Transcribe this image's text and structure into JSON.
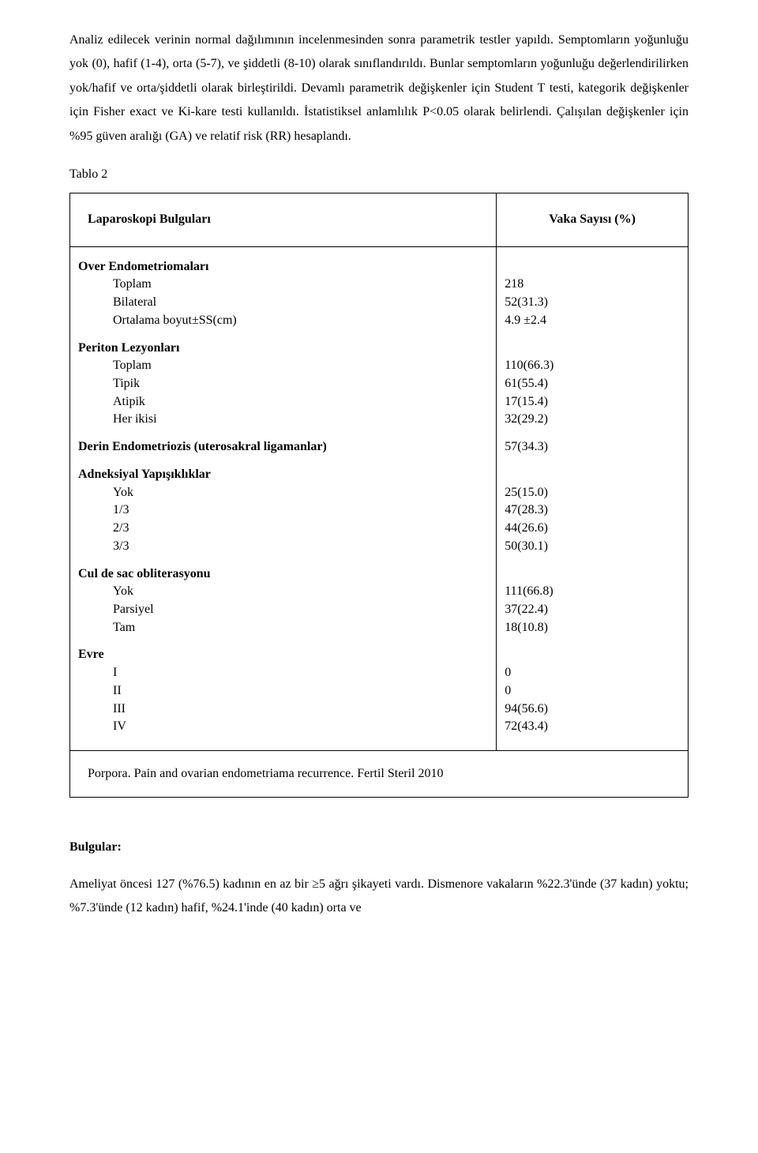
{
  "intro": {
    "p1": "Analiz edilecek verinin normal dağılımının incelenmesinden sonra parametrik testler yapıldı. Semptomların yoğunluğu yok (0), hafif (1-4), orta (5-7), ve şiddetli (8-10) olarak sınıflandırıldı. Bunlar semptomların yoğunluğu değerlendirilirken  yok/hafif ve orta/şiddetli  olarak birleştirildi. Devamlı parametrik değişkenler için Student T testi, kategorik değişkenler için Fisher exact ve Ki-kare testi kullanıldı. İstatistiksel anlamlılık  P<0.05 olarak belirlendi.  Çalışılan değişkenler için  %95 güven aralığı (GA) ve relatif risk (RR) hesaplandı."
  },
  "table": {
    "label": "Tablo 2",
    "header_left": "Laparoskopi Bulguları",
    "header_right": "Vaka Sayısı (%)",
    "groups": [
      {
        "title": "Over Endometriomaları",
        "rows": [
          {
            "label": "Toplam",
            "value": "218"
          },
          {
            "label": "Bilateral",
            "value": "52(31.3)"
          },
          {
            "label": "Ortalama boyut±SS(cm)",
            "value": "4.9 ±2.4"
          }
        ]
      },
      {
        "title": "Periton Lezyonları",
        "rows": [
          {
            "label": "Toplam",
            "value": "110(66.3)"
          },
          {
            "label": "Tipik",
            "value": "61(55.4)"
          },
          {
            "label": "Atipik",
            "value": "17(15.4)"
          },
          {
            "label": "Her ikisi",
            "value": "32(29.2)"
          }
        ]
      },
      {
        "title": "Derin Endometriozis (uterosakral ligamanlar)",
        "single": true,
        "value": "57(34.3)"
      },
      {
        "title": "Adneksiyal Yapışıklıklar",
        "rows": [
          {
            "label": "Yok",
            "value": "25(15.0)"
          },
          {
            "label": "1/3",
            "value": "47(28.3)"
          },
          {
            "label": "2/3",
            "value": "44(26.6)"
          },
          {
            "label": "3/3",
            "value": "50(30.1)"
          }
        ]
      },
      {
        "title": "Cul de sac obliterasyonu",
        "rows": [
          {
            "label": "Yok",
            "value": "111(66.8)"
          },
          {
            "label": "Parsiyel",
            "value": "37(22.4)"
          },
          {
            "label": "Tam",
            "value": "18(10.8)"
          }
        ]
      },
      {
        "title": "Evre",
        "rows": [
          {
            "label": "I",
            "value": "0"
          },
          {
            "label": "II",
            "value": "0"
          },
          {
            "label": "III",
            "value": "94(56.6)"
          },
          {
            "label": "IV",
            "value": "72(43.4)"
          }
        ]
      }
    ],
    "footnote": "Porpora. Pain and ovarian endometriama recurrence. Fertil Steril 2010"
  },
  "findings": {
    "heading": "Bulgular:",
    "p1": "Ameliyat öncesi 127 (%76.5)  kadının en az  bir  ≥5  ağrı şikayeti vardı. Dismenore vakaların %22.3'ünde (37 kadın) yoktu;  %7.3'ünde (12 kadın) hafif,  %24.1'inde (40 kadın) orta ve"
  }
}
